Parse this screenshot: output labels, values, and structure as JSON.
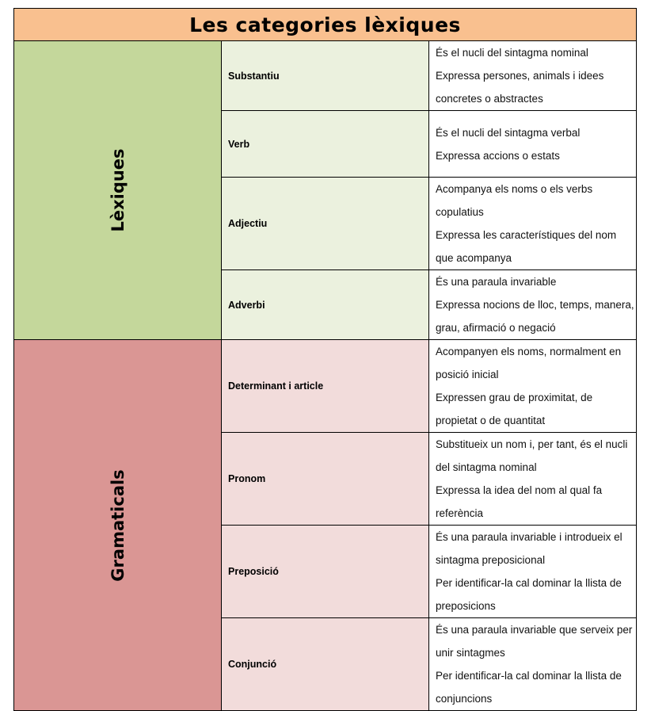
{
  "title": "Les categories lèxiques",
  "colors": {
    "title_bg": "#F9C08F",
    "lexiques_group": "#C4D79B",
    "lexiques_cell": "#EBF1DE",
    "gramaticals_group": "#DA9694",
    "gramaticals_cell": "#F2DCDB"
  },
  "groups": [
    {
      "label": "Lèxiques",
      "cls": "lex",
      "rows": [
        {
          "category": "Substantiu",
          "lines": [
            "És el nucli del sintagma nominal",
            "Expressa persones, animals i idees concretes o abstractes"
          ]
        },
        {
          "category": "Verb",
          "lines": [
            "És el nucli del sintagma verbal",
            "Expressa accions o estats"
          ]
        },
        {
          "category": "Adjectiu",
          "lines": [
            "Acompanya els noms o els verbs copulatius",
            "Expressa les característiques del nom que acompanya"
          ]
        },
        {
          "category": "Adverbi",
          "lines": [
            "És una paraula invariable",
            "Expressa nocions de lloc, temps, manera, grau, afirmació o negació"
          ]
        }
      ]
    },
    {
      "label": "Gramaticals",
      "cls": "gram",
      "rows": [
        {
          "category": "Determinant i article",
          "lines": [
            "Acompanyen els noms, normalment en posició inicial",
            "Expressen grau de proximitat, de propietat o de quantitat"
          ]
        },
        {
          "category": "Pronom",
          "lines": [
            "Substitueix un nom i, per tant, és el nucli del sintagma nominal",
            "Expressa la idea del nom al qual fa referència"
          ]
        },
        {
          "category": "Preposició",
          "lines": [
            "És una paraula invariable i introdueix el sintagma preposicional",
            "Per identificar-la cal dominar la llista de preposicions"
          ]
        },
        {
          "category": "Conjunció",
          "lines": [
            "És una paraula invariable que serveix per unir sintagmes",
            "Per identificar-la cal dominar la llista de conjuncions"
          ]
        }
      ]
    }
  ]
}
